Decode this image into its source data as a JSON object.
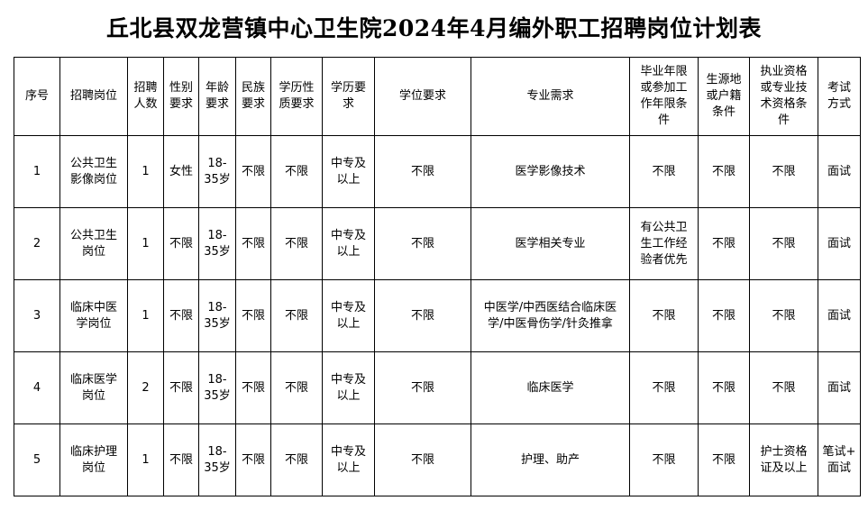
{
  "title": "丘北县双龙营镇中心卫生院2024年4月编外职工招聘岗位计划表",
  "headers": [
    "序号",
    "招聘岗位",
    "招聘\n人数",
    "性别\n要求",
    "年龄\n要求",
    "民族\n要求",
    "学历性\n质要求",
    "学历要\n求",
    "学位要求",
    "专业需求",
    "毕业年限\n或参加工\n作年限条\n件",
    "生源地\n或户籍\n条件",
    "执业资格\n或专业技\n术资格条\n件",
    "考试\n方式"
  ],
  "rows": [
    [
      "1",
      "公共卫生\n影像岗位",
      "1",
      "女性",
      "18-\n35岁",
      "不限",
      "不限",
      "中专及\n以上",
      "不限",
      "医学影像技术",
      "不限",
      "不限",
      "不限",
      "面试"
    ],
    [
      "2",
      "公共卫生\n岗位",
      "1",
      "不限",
      "18-\n35岁",
      "不限",
      "不限",
      "中专及\n以上",
      "不限",
      "医学相关专业",
      "有公共卫\n生工作经\n验者优先",
      "不限",
      "不限",
      "面试"
    ],
    [
      "3",
      "临床中医\n学岗位",
      "1",
      "不限",
      "18-\n35岁",
      "不限",
      "不限",
      "中专及\n以上",
      "不限",
      "中医学/中西医结合临床医\n学/中医骨伤学/针灸推拿",
      "不限",
      "不限",
      "不限",
      "面试"
    ],
    [
      "4",
      "临床医学\n岗位",
      "2",
      "不限",
      "18-\n35岁",
      "不限",
      "不限",
      "中专及\n以上",
      "不限",
      "临床医学",
      "不限",
      "不限",
      "不限",
      "面试"
    ],
    [
      "5",
      "临床护理\n岗位",
      "1",
      "不限",
      "18-\n35岁",
      "不限",
      "不限",
      "中专及\n以上",
      "不限",
      "护理、助产",
      "不限",
      "不限",
      "护士资格\n证及以上",
      "笔试+\n面试"
    ]
  ]
}
